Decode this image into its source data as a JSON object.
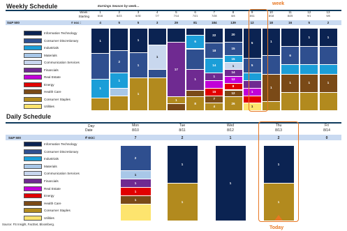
{
  "colors": {
    "Information Technology": "#0b2352",
    "Consumer Discretionary": "#2f4f8f",
    "Industrials": "#1b9ed8",
    "Materials": "#a8c7e8",
    "Communication Services": "#c8d7ee",
    "Financials": "#6f2a91",
    "Real Estate": "#c100d8",
    "Energy": "#e10000",
    "Health Care": "#7a4a17",
    "Consumer Staples": "#b28a1e",
    "Utilities": "#fde46e"
  },
  "weekly": {
    "title": "Weekly Schedule",
    "subtitle": "Earnings Season by week…",
    "week_label": "Week :",
    "starting_label": "Starting",
    "sp_label": "S&P 500",
    "eoc_label": "# occ :",
    "callout": "week",
    "legend": [
      "Information Technology",
      "Consumer Discretionary",
      "Industrials",
      "Materials",
      "Communication Services",
      "Financials",
      "Real Estate",
      "Energy",
      "Health Care",
      "Consumer Staples",
      "Utilities"
    ],
    "weeks": [
      "1",
      "2",
      "3",
      "4",
      "5",
      "6",
      "7",
      "8",
      "9",
      "10",
      "11",
      "12",
      "13"
    ],
    "starting": [
      "6/16",
      "6/23",
      "6/30",
      "7/7",
      "7/14",
      "7/21",
      "7/28",
      "8/4",
      "8/11",
      "8/18",
      "8/25",
      "9/1",
      "9/8"
    ],
    "counts": [
      "4",
      "5",
      "5",
      "3",
      "29",
      "81",
      "184",
      "139",
      "12",
      "18",
      "16",
      "5",
      "2"
    ]
  },
  "daily": {
    "title": "Daily Schedule",
    "day_label": "Day:",
    "date_label": "Date",
    "sp_label": "S&P 500",
    "eoc_label": "# occ:",
    "callout": "Today",
    "legend": [
      "Information Technology",
      "Consumer Discretionary",
      "Industrials",
      "Materials",
      "Communication Services",
      "Financials",
      "Real Estate",
      "Energy",
      "Health Care",
      "Consumer Staples",
      "Utilities"
    ],
    "days": [
      "Mon",
      "Tue",
      "Wed",
      "Thu",
      "Fri"
    ],
    "dates": [
      "8/10",
      "8/11",
      "8/12",
      "8/13",
      "8/14"
    ],
    "counts": [
      "7",
      "2",
      "1",
      "2",
      "0"
    ]
  },
  "source": "Source: FS Insight, FactSet, Bloomberg.",
  "chart_data": [
    {
      "type": "bar",
      "title": "Weekly Schedule",
      "subtitle": "Earnings Season by week…",
      "categories": [
        "1",
        "2",
        "3",
        "4",
        "5",
        "6",
        "7",
        "8",
        "9",
        "10",
        "11",
        "12",
        "13"
      ],
      "series": [
        {
          "name": "Information Technology",
          "values": [
            1,
            1,
            0,
            1,
            0,
            8,
            22,
            20,
            5,
            1,
            0,
            1,
            0
          ]
        },
        {
          "name": "Consumer Discretionary",
          "values": [
            0,
            0,
            1,
            0,
            0,
            0,
            0,
            0,
            0,
            0,
            0,
            0,
            0
          ]
        },
        {
          "name": "Industrials",
          "values": [
            0,
            0,
            0,
            0,
            0,
            6,
            0,
            0,
            0,
            0,
            0,
            0,
            0
          ]
        },
        {
          "name": "Materials",
          "values": [
            0,
            1,
            0,
            0,
            0,
            0,
            0,
            0,
            0,
            0,
            0,
            0,
            0
          ]
        },
        {
          "name": "Communication Services",
          "values": [
            0,
            0,
            0,
            0,
            0,
            0,
            0,
            0,
            0,
            0,
            0,
            0,
            0
          ]
        },
        {
          "name": "Financials",
          "values": [
            0,
            0,
            0,
            0,
            17,
            0,
            0,
            0,
            0,
            0,
            0,
            0,
            0
          ]
        },
        {
          "name": "Real Estate",
          "values": [
            0,
            0,
            0,
            0,
            0,
            0,
            0,
            0,
            1,
            0,
            0,
            0,
            0
          ]
        },
        {
          "name": "Energy",
          "values": [
            0,
            0,
            0,
            0,
            0,
            0,
            0,
            0,
            1,
            0,
            0,
            0,
            0
          ]
        },
        {
          "name": "Health Care",
          "values": [
            0,
            0,
            0,
            0,
            0,
            0,
            0,
            0,
            0,
            0,
            0,
            0,
            0
          ]
        },
        {
          "name": "Consumer Staples",
          "values": [
            0,
            0,
            1,
            0,
            0,
            0,
            0,
            0,
            0,
            0,
            0,
            0,
            0
          ]
        },
        {
          "name": "Utilities",
          "values": [
            0,
            0,
            0,
            0,
            0,
            0,
            0,
            0,
            1,
            0,
            0,
            0,
            0
          ]
        }
      ]
    },
    {
      "type": "bar",
      "title": "Daily Schedule",
      "categories": [
        "Mon",
        "Tue",
        "Wed",
        "Thu",
        "Fri"
      ],
      "series": [
        {
          "name": "Information Technology",
          "values": [
            0,
            1,
            1,
            1,
            0
          ]
        },
        {
          "name": "Consumer Discretionary",
          "values": [
            2,
            0,
            0,
            0,
            0
          ]
        },
        {
          "name": "Materials",
          "values": [
            1,
            0,
            0,
            0,
            0
          ]
        },
        {
          "name": "Financials",
          "values": [
            1,
            0,
            0,
            0,
            0
          ]
        },
        {
          "name": "Energy",
          "values": [
            1,
            0,
            0,
            0,
            0
          ]
        },
        {
          "name": "Health Care",
          "values": [
            1,
            0,
            0,
            0,
            0
          ]
        },
        {
          "name": "Consumer Staples",
          "values": [
            0,
            1,
            0,
            1,
            0
          ]
        },
        {
          "name": "Utilities",
          "values": [
            1,
            0,
            0,
            0,
            0
          ]
        }
      ]
    }
  ]
}
